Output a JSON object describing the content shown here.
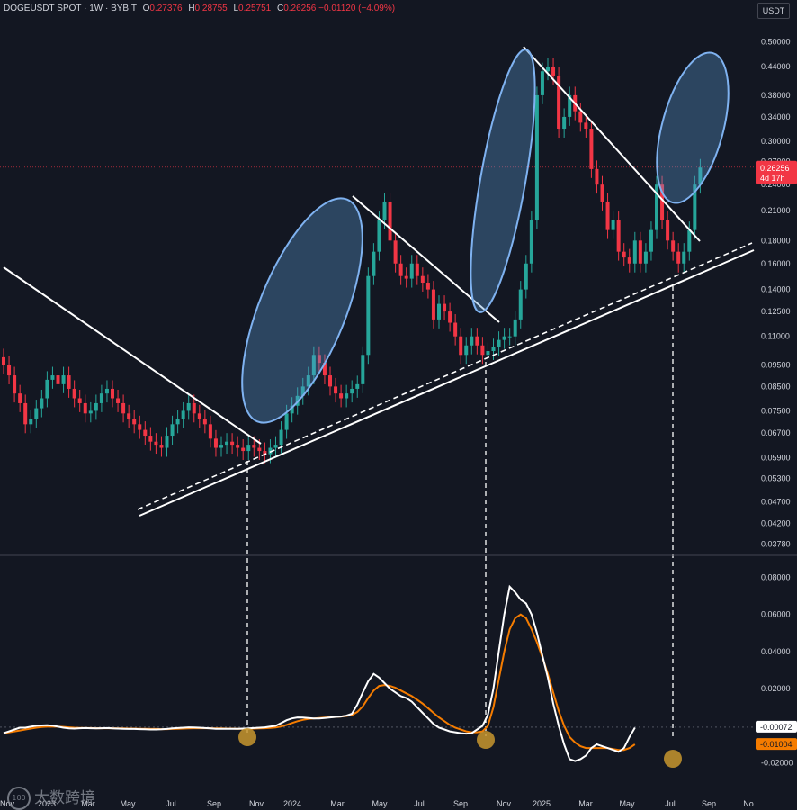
{
  "header": {
    "symbol": "DOGEUSDT SPOT · 1W · BYBIT",
    "o_label": "O",
    "o_value": "0.27376",
    "h_label": "H",
    "h_value": "0.28755",
    "l_label": "L",
    "l_value": "0.25751",
    "c_label": "C",
    "c_value": "0.26256",
    "change": "−0.01120 (−4.09%)"
  },
  "currency_button": "USDT",
  "watermark": {
    "logo_text": "100",
    "text": "大数跨境"
  },
  "colors": {
    "background": "#131722",
    "up": "#26a69a",
    "down": "#f23645",
    "macd": "#ffffff",
    "signal": "#f57c00",
    "ellipse": "#5b9bd5"
  },
  "chart_data": [
    {
      "type": "candlestick",
      "scale": "log",
      "ylim": [
        0.0365,
        0.54
      ],
      "price_ticks": [
        "0.50000",
        "0.44000",
        "0.38000",
        "0.34000",
        "0.30000",
        "0.27000",
        "0.24000",
        "0.21000",
        "0.18000",
        "0.16000",
        "0.14000",
        "0.12500",
        "0.11000",
        "0.09500",
        "0.08500",
        "0.07500",
        "0.06700",
        "0.05900",
        "0.05300",
        "0.04700",
        "0.04200",
        "0.03780"
      ],
      "last_price": {
        "value": "0.26256",
        "countdown": "4d 17h"
      },
      "closes": [
        0.095,
        0.09,
        0.082,
        0.078,
        0.07,
        0.072,
        0.076,
        0.08,
        0.088,
        0.09,
        0.086,
        0.09,
        0.084,
        0.08,
        0.078,
        0.074,
        0.075,
        0.078,
        0.082,
        0.084,
        0.08,
        0.078,
        0.074,
        0.072,
        0.07,
        0.068,
        0.066,
        0.064,
        0.063,
        0.062,
        0.066,
        0.07,
        0.072,
        0.075,
        0.078,
        0.074,
        0.072,
        0.07,
        0.065,
        0.062,
        0.063,
        0.064,
        0.063,
        0.062,
        0.061,
        0.063,
        0.062,
        0.061,
        0.06,
        0.062,
        0.063,
        0.068,
        0.074,
        0.077,
        0.081,
        0.085,
        0.09,
        0.1,
        0.096,
        0.09,
        0.085,
        0.082,
        0.08,
        0.082,
        0.084,
        0.086,
        0.1,
        0.15,
        0.17,
        0.2,
        0.22,
        0.18,
        0.16,
        0.15,
        0.148,
        0.16,
        0.15,
        0.145,
        0.14,
        0.12,
        0.13,
        0.125,
        0.118,
        0.11,
        0.1,
        0.105,
        0.11,
        0.105,
        0.1,
        0.102,
        0.104,
        0.108,
        0.11,
        0.11,
        0.12,
        0.14,
        0.16,
        0.2,
        0.38,
        0.43,
        0.44,
        0.42,
        0.32,
        0.34,
        0.38,
        0.35,
        0.33,
        0.32,
        0.26,
        0.24,
        0.22,
        0.19,
        0.2,
        0.17,
        0.165,
        0.16,
        0.18,
        0.16,
        0.17,
        0.19,
        0.24,
        0.2,
        0.18,
        0.17,
        0.16,
        0.17,
        0.19,
        0.24,
        0.262
      ],
      "macd": [
        -0.004,
        -0.003,
        -0.002,
        -0.001,
        -0.001,
        -0.0005,
        0,
        0.0002,
        0.0003,
        0.0001,
        -0.0005,
        -0.001,
        -0.0014,
        -0.0015,
        -0.0013,
        -0.0012,
        -0.0013,
        -0.0014,
        -0.0013,
        -0.0012,
        -0.0014,
        -0.0015,
        -0.0016,
        -0.0017,
        -0.0017,
        -0.0018,
        -0.0019,
        -0.002,
        -0.002,
        -0.0019,
        -0.0017,
        -0.0014,
        -0.0012,
        -0.001,
        -0.0008,
        -0.0009,
        -0.001,
        -0.0012,
        -0.0014,
        -0.0016,
        -0.0016,
        -0.0016,
        -0.0016,
        -0.0016,
        -0.0015,
        -0.0014,
        -0.0012,
        -0.001,
        -0.0008,
        -0.0004,
        0,
        0.0015,
        0.003,
        0.004,
        0.0045,
        0.0044,
        0.0042,
        0.004,
        0.004,
        0.0042,
        0.0045,
        0.0048,
        0.005,
        0.0055,
        0.0065,
        0.0115,
        0.018,
        0.024,
        0.028,
        0.026,
        0.023,
        0.02,
        0.018,
        0.016,
        0.015,
        0.013,
        0.01,
        0.007,
        0.004,
        0.001,
        -0.001,
        -0.002,
        -0.003,
        -0.0035,
        -0.004,
        -0.0042,
        -0.004,
        -0.002,
        0,
        0.006,
        0.02,
        0.04,
        0.06,
        0.075,
        0.072,
        0.068,
        0.066,
        0.06,
        0.05,
        0.038,
        0.026,
        0.012,
        0,
        -0.01,
        -0.018,
        -0.019,
        -0.018,
        -0.016,
        -0.012,
        -0.01,
        -0.011,
        -0.012,
        -0.013,
        -0.014,
        -0.012,
        -0.006,
        -0.001
      ],
      "signal": [
        -0.004,
        -0.0035,
        -0.003,
        -0.0025,
        -0.002,
        -0.0015,
        -0.001,
        -0.0007,
        -0.0005,
        -0.0004,
        -0.0005,
        -0.0006,
        -0.0008,
        -0.001,
        -0.0011,
        -0.0012,
        -0.0012,
        -0.0013,
        -0.0013,
        -0.0013,
        -0.0013,
        -0.0014,
        -0.0014,
        -0.0015,
        -0.0015,
        -0.0016,
        -0.0016,
        -0.0017,
        -0.0017,
        -0.0018,
        -0.0018,
        -0.0017,
        -0.0016,
        -0.0015,
        -0.0014,
        -0.0013,
        -0.0013,
        -0.0013,
        -0.0013,
        -0.0014,
        -0.0014,
        -0.0015,
        -0.0015,
        -0.0016,
        -0.0016,
        -0.0016,
        -0.0015,
        -0.0014,
        -0.0013,
        -0.0011,
        -0.0009,
        -0.0004,
        0.0005,
        0.0015,
        0.0025,
        0.0032,
        0.0037,
        0.004,
        0.0042,
        0.0044,
        0.0046,
        0.0048,
        0.005,
        0.0053,
        0.0058,
        0.0075,
        0.0105,
        0.015,
        0.019,
        0.0215,
        0.022,
        0.0215,
        0.0205,
        0.019,
        0.0175,
        0.016,
        0.014,
        0.012,
        0.0095,
        0.007,
        0.0045,
        0.0025,
        0.0005,
        -0.001,
        -0.002,
        -0.003,
        -0.0035,
        -0.0035,
        -0.003,
        0,
        0.01,
        0.025,
        0.04,
        0.052,
        0.058,
        0.06,
        0.058,
        0.052,
        0.045,
        0.037,
        0.028,
        0.018,
        0.008,
        0,
        -0.006,
        -0.009,
        -0.011,
        -0.012,
        -0.012,
        -0.012,
        -0.012,
        -0.012,
        -0.0125,
        -0.013,
        -0.013,
        -0.012,
        -0.01
      ],
      "macd_ticks": [
        "0.08000",
        "0.06000",
        "0.04000",
        "0.02000",
        "-0.02000"
      ],
      "macd_last": "-0.00072",
      "signal_last": "-0.01004",
      "x_ticks": [
        "Nov",
        "2023",
        "Mar",
        "May",
        "Jul",
        "Sep",
        "Nov",
        "2024",
        "Mar",
        "May",
        "Jul",
        "Sep",
        "Nov",
        "2025",
        "Mar",
        "May",
        "Jul",
        "Sep",
        "No"
      ]
    }
  ]
}
